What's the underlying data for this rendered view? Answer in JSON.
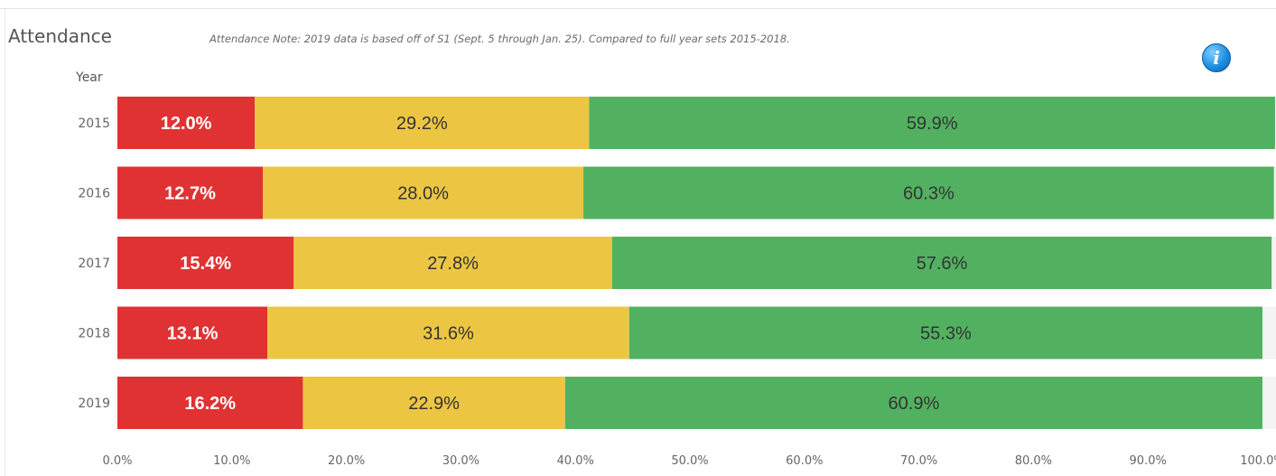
{
  "header": {
    "title": "Attendance",
    "note": "Attendance Note: 2019 data is based off of S1 (Sept. 5 through Jan. 25).  Compared to full year sets 2015-2018.",
    "info_icon": "i"
  },
  "chart_data": {
    "type": "bar",
    "orientation": "horizontal",
    "stacked": true,
    "ylabel": "Year",
    "categories": [
      "2015",
      "2016",
      "2017",
      "2018",
      "2019"
    ],
    "series": [
      {
        "values": [
          12.0,
          12.7,
          15.4,
          13.1,
          16.2
        ],
        "labels": [
          "12.0%",
          "12.7%",
          "15.4%",
          "13.1%",
          "16.2%"
        ],
        "color": "#e03232",
        "label_color": "#ffffff"
      },
      {
        "values": [
          29.2,
          28.0,
          27.8,
          31.6,
          22.9
        ],
        "labels": [
          "29.2%",
          "28.0%",
          "27.8%",
          "31.6%",
          "22.9%"
        ],
        "color": "#ecc643",
        "label_color": "#333333"
      },
      {
        "values": [
          59.9,
          60.3,
          57.6,
          55.3,
          60.9
        ],
        "labels": [
          "59.9%",
          "60.3%",
          "57.6%",
          "55.3%",
          "60.9%"
        ],
        "color": "#52b160",
        "label_color": "#333333"
      }
    ],
    "xlim": [
      0,
      100
    ],
    "x_ticks": [
      0,
      10,
      20,
      30,
      40,
      50,
      60,
      70,
      80,
      90,
      100
    ],
    "x_tick_labels": [
      "0.0%",
      "10.0%",
      "20.0%",
      "30.0%",
      "40.0%",
      "50.0%",
      "60.0%",
      "70.0%",
      "80.0%",
      "90.0%",
      "100.0%"
    ],
    "grid": false,
    "legend": "none"
  }
}
